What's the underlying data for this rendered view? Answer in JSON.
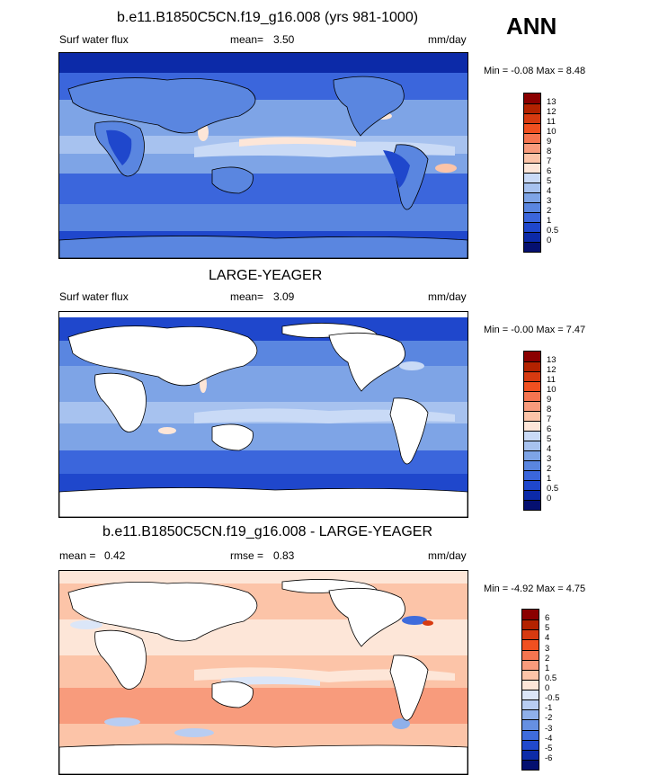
{
  "season": "ANN",
  "panels": [
    {
      "title": "b.e11.B1850C5CN.f19_g16.008 (yrs 981-1000)",
      "variable": "Surf water flux",
      "stat_label": "mean=",
      "stat_value": "3.50",
      "stat2_label": "",
      "stat2_value": "",
      "units": "mm/day",
      "min_label": "Min =",
      "min_value": "-0.08",
      "max_label": "Max =",
      "max_value": "8.48",
      "land_masked": false,
      "colorbar": {
        "labels": [
          "13",
          "12",
          "11",
          "10",
          "9",
          "8",
          "7",
          "6",
          "5",
          "4",
          "3",
          "2",
          "1",
          "0.5",
          "0"
        ],
        "colors": [
          "#8b0000",
          "#b32200",
          "#d73a10",
          "#f05020",
          "#f57550",
          "#f89b7c",
          "#fcc4a8",
          "#fde6d8",
          "#c9daf6",
          "#a7c2ef",
          "#7ea4e6",
          "#5a86e0",
          "#3b66dc",
          "#1f47cc",
          "#0c2aa8",
          "#051070"
        ]
      }
    },
    {
      "title": "LARGE-YEAGER",
      "variable": "Surf water flux",
      "stat_label": "mean=",
      "stat_value": "3.09",
      "stat2_label": "",
      "stat2_value": "",
      "units": "mm/day",
      "min_label": "Min =",
      "min_value": "-0.00",
      "max_label": "Max =",
      "max_value": "7.47",
      "land_masked": true,
      "colorbar": {
        "labels": [
          "13",
          "12",
          "11",
          "10",
          "9",
          "8",
          "7",
          "6",
          "5",
          "4",
          "3",
          "2",
          "1",
          "0.5",
          "0"
        ],
        "colors": [
          "#8b0000",
          "#b32200",
          "#d73a10",
          "#f05020",
          "#f57550",
          "#f89b7c",
          "#fcc4a8",
          "#fde6d8",
          "#c9daf6",
          "#a7c2ef",
          "#7ea4e6",
          "#5a86e0",
          "#3b66dc",
          "#1f47cc",
          "#0c2aa8",
          "#051070"
        ]
      }
    },
    {
      "title": "b.e11.B1850C5CN.f19_g16.008 - LARGE-YEAGER",
      "variable": "",
      "stat_label": "mean =",
      "stat_value": "0.42",
      "stat2_label": "rmse =",
      "stat2_value": "0.83",
      "units": "mm/day",
      "min_label": "Min =",
      "min_value": "-4.92",
      "max_label": "Max =",
      "max_value": "4.75",
      "land_masked": true,
      "colorbar": {
        "labels": [
          "6",
          "5",
          "4",
          "3",
          "2",
          "1",
          "0.5",
          "0",
          "-0.5",
          "-1",
          "-2",
          "-3",
          "-4",
          "-5",
          "-6"
        ],
        "colors": [
          "#8b0000",
          "#b32200",
          "#d73a10",
          "#f05020",
          "#f57550",
          "#f89b7c",
          "#fcc4a8",
          "#fde6d8",
          "#dbe6f8",
          "#b8cdf2",
          "#8fb0ea",
          "#6690e2",
          "#3f6cdc",
          "#2149cc",
          "#0d2ca8",
          "#051070"
        ]
      }
    }
  ]
}
